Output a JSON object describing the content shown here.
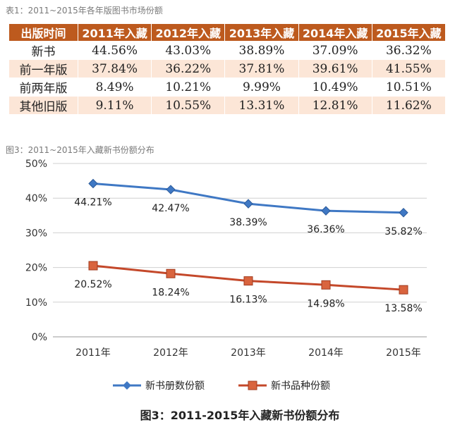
{
  "table_caption": "表1：2011~2015年各年版图书市场份额",
  "table": {
    "headers": [
      "出版时间",
      "2011年入藏",
      "2012年入藏",
      "2013年入藏",
      "2014年入藏",
      "2015年入藏"
    ],
    "rows": [
      [
        "新书",
        "44.56%",
        "43.03%",
        "38.89%",
        "37.09%",
        "36.32%"
      ],
      [
        "前一年版",
        "37.84%",
        "36.22%",
        "37.81%",
        "39.61%",
        "41.55%"
      ],
      [
        "前两年版",
        "8.49%",
        "10.21%",
        "9.99%",
        "10.49%",
        "10.51%"
      ],
      [
        "其他旧版",
        "9.11%",
        "10.55%",
        "13.31%",
        "12.81%",
        "11.62%"
      ]
    ]
  },
  "chart_caption": "图3：2011~2015年入藏新书份额分布",
  "chart_data": {
    "type": "line",
    "title": "图3：2011-2015年入藏新书份额分布",
    "categories": [
      "2011年",
      "2012年",
      "2013年",
      "2014年",
      "2015年"
    ],
    "ylim": [
      0,
      50
    ],
    "yticks": [
      "0%",
      "10%",
      "20%",
      "30%",
      "40%",
      "50%"
    ],
    "grid": true,
    "legend_position": "bottom",
    "series": [
      {
        "name": "新书册数份额",
        "values": [
          44.21,
          42.47,
          38.39,
          36.36,
          35.82
        ],
        "labels": [
          "44.21%",
          "42.47%",
          "38.39%",
          "36.36%",
          "35.82%"
        ],
        "color": "#3f78c4",
        "marker": "diamond"
      },
      {
        "name": "新书品种份额",
        "values": [
          20.52,
          18.24,
          16.13,
          14.98,
          13.58
        ],
        "labels": [
          "20.52%",
          "18.24%",
          "16.13%",
          "14.98%",
          "13.58%"
        ],
        "color": "#c4482a",
        "marker": "square"
      }
    ]
  },
  "colors": {
    "table_header": "#bd5a1e",
    "table_stripe": "#fce6d7",
    "caption": "#7a7a7a"
  }
}
